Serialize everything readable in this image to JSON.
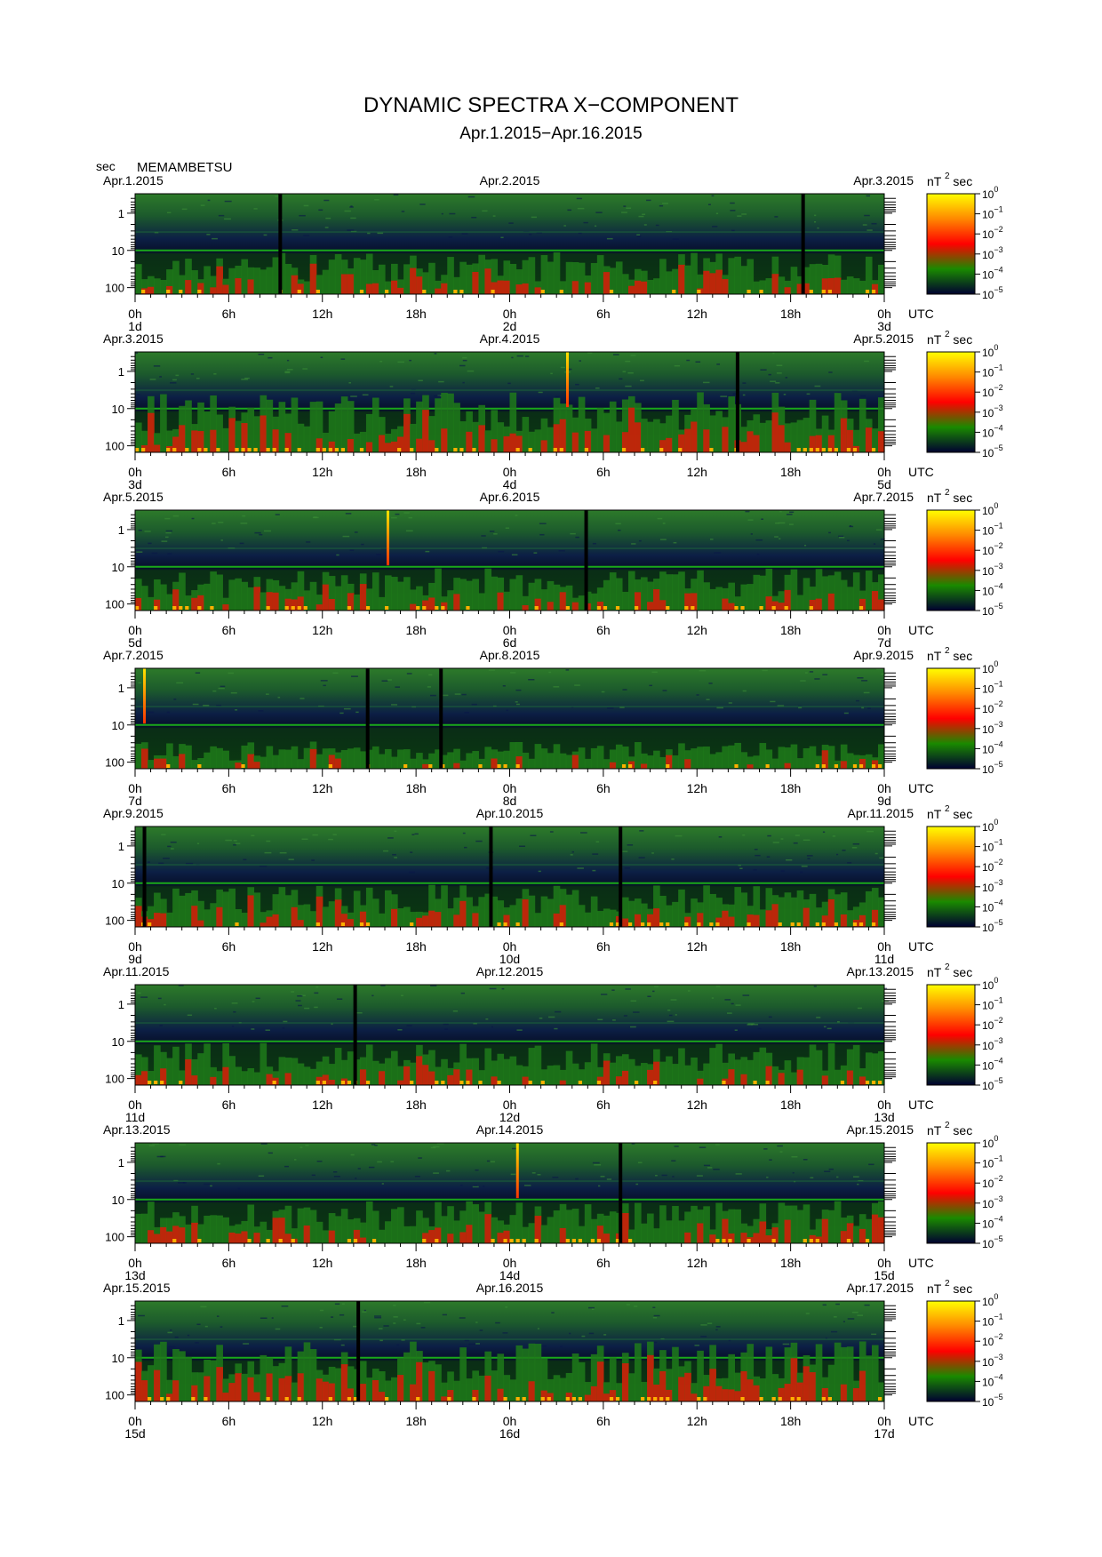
{
  "figure": {
    "title": "DYNAMIC SPECTRA X−COMPONENT",
    "subtitle": "Apr.1.2015−Apr.16.2015",
    "y_unit": "sec",
    "station": "MEMAMBETSU",
    "utc_label": "UTC",
    "colorbar_unit_base": "nT",
    "colorbar_unit_exp": "2",
    "colorbar_unit_tail": "sec"
  },
  "chart_data": {
    "type": "heatmap",
    "description_values": "spectral power density of geomagnetic X component",
    "yscale": "log",
    "ylim": [
      0.3,
      150
    ],
    "y_ticks": [
      {
        "value": 1,
        "label": "1"
      },
      {
        "value": 10,
        "label": "10"
      },
      {
        "value": 100,
        "label": "100"
      }
    ],
    "x_tick_labels": [
      "0h",
      "6h",
      "12h",
      "18h",
      "0h",
      "6h",
      "12h",
      "18h",
      "0h"
    ],
    "colorbar": {
      "scale": "log",
      "ticks": [
        {
          "base": "10",
          "exp": "0"
        },
        {
          "base": "10",
          "exp": "−1"
        },
        {
          "base": "10",
          "exp": "−2"
        },
        {
          "base": "10",
          "exp": "−3"
        },
        {
          "base": "10",
          "exp": "−4"
        },
        {
          "base": "10",
          "exp": "−5"
        }
      ],
      "colors": [
        "#ffff00",
        "#ff8800",
        "#ff0000",
        "#1a8a00",
        "#000030"
      ]
    },
    "panels": [
      {
        "date_left": "Apr.1.2015",
        "date_mid": "Apr.2.2015",
        "date_right": "Apr.3.2015",
        "day_left": "1d",
        "day_mid": "2d",
        "day_right": "3d",
        "activity": "moderate",
        "data_gaps_h": [
          9.3,
          42.8
        ],
        "spikes_h": []
      },
      {
        "date_left": "Apr.3.2015",
        "date_mid": "Apr.4.2015",
        "date_right": "Apr.5.2015",
        "day_left": "3d",
        "day_mid": "4d",
        "day_right": "5d",
        "activity": "high",
        "data_gaps_h": [
          38.6
        ],
        "spikes_h": [
          27.7
        ]
      },
      {
        "date_left": "Apr.5.2015",
        "date_mid": "Apr.6.2015",
        "date_right": "Apr.7.2015",
        "day_left": "5d",
        "day_mid": "6d",
        "day_right": "7d",
        "activity": "moderate",
        "data_gaps_h": [
          28.9
        ],
        "spikes_h": [
          16.2
        ]
      },
      {
        "date_left": "Apr.7.2015",
        "date_mid": "Apr.8.2015",
        "date_right": "Apr.9.2015",
        "day_left": "7d",
        "day_mid": "8d",
        "day_right": "9d",
        "activity": "low",
        "data_gaps_h": [
          14.9,
          19.6
        ],
        "spikes_h": [
          0.6
        ]
      },
      {
        "date_left": "Apr.9.2015",
        "date_mid": "Apr.10.2015",
        "date_right": "Apr.11.2015",
        "day_left": "9d",
        "day_mid": "10d",
        "day_right": "11d",
        "activity": "moderate",
        "data_gaps_h": [
          0.6,
          22.8,
          31.1
        ],
        "spikes_h": []
      },
      {
        "date_left": "Apr.11.2015",
        "date_mid": "Apr.12.2015",
        "date_right": "Apr.13.2015",
        "day_left": "11d",
        "day_mid": "12d",
        "day_right": "13d",
        "activity": "moderate",
        "data_gaps_h": [
          14.1
        ],
        "spikes_h": []
      },
      {
        "date_left": "Apr.13.2015",
        "date_mid": "Apr.14.2015",
        "date_right": "Apr.15.2015",
        "day_left": "13d",
        "day_mid": "14d",
        "day_right": "15d",
        "activity": "moderate",
        "data_gaps_h": [
          31.1
        ],
        "spikes_h": [
          24.5
        ]
      },
      {
        "date_left": "Apr.15.2015",
        "date_mid": "Apr.16.2015",
        "date_right": "Apr.17.2015",
        "day_left": "15d",
        "day_mid": "16d",
        "day_right": "17d",
        "activity": "high",
        "data_gaps_h": [
          14.3
        ],
        "spikes_h": []
      }
    ]
  }
}
